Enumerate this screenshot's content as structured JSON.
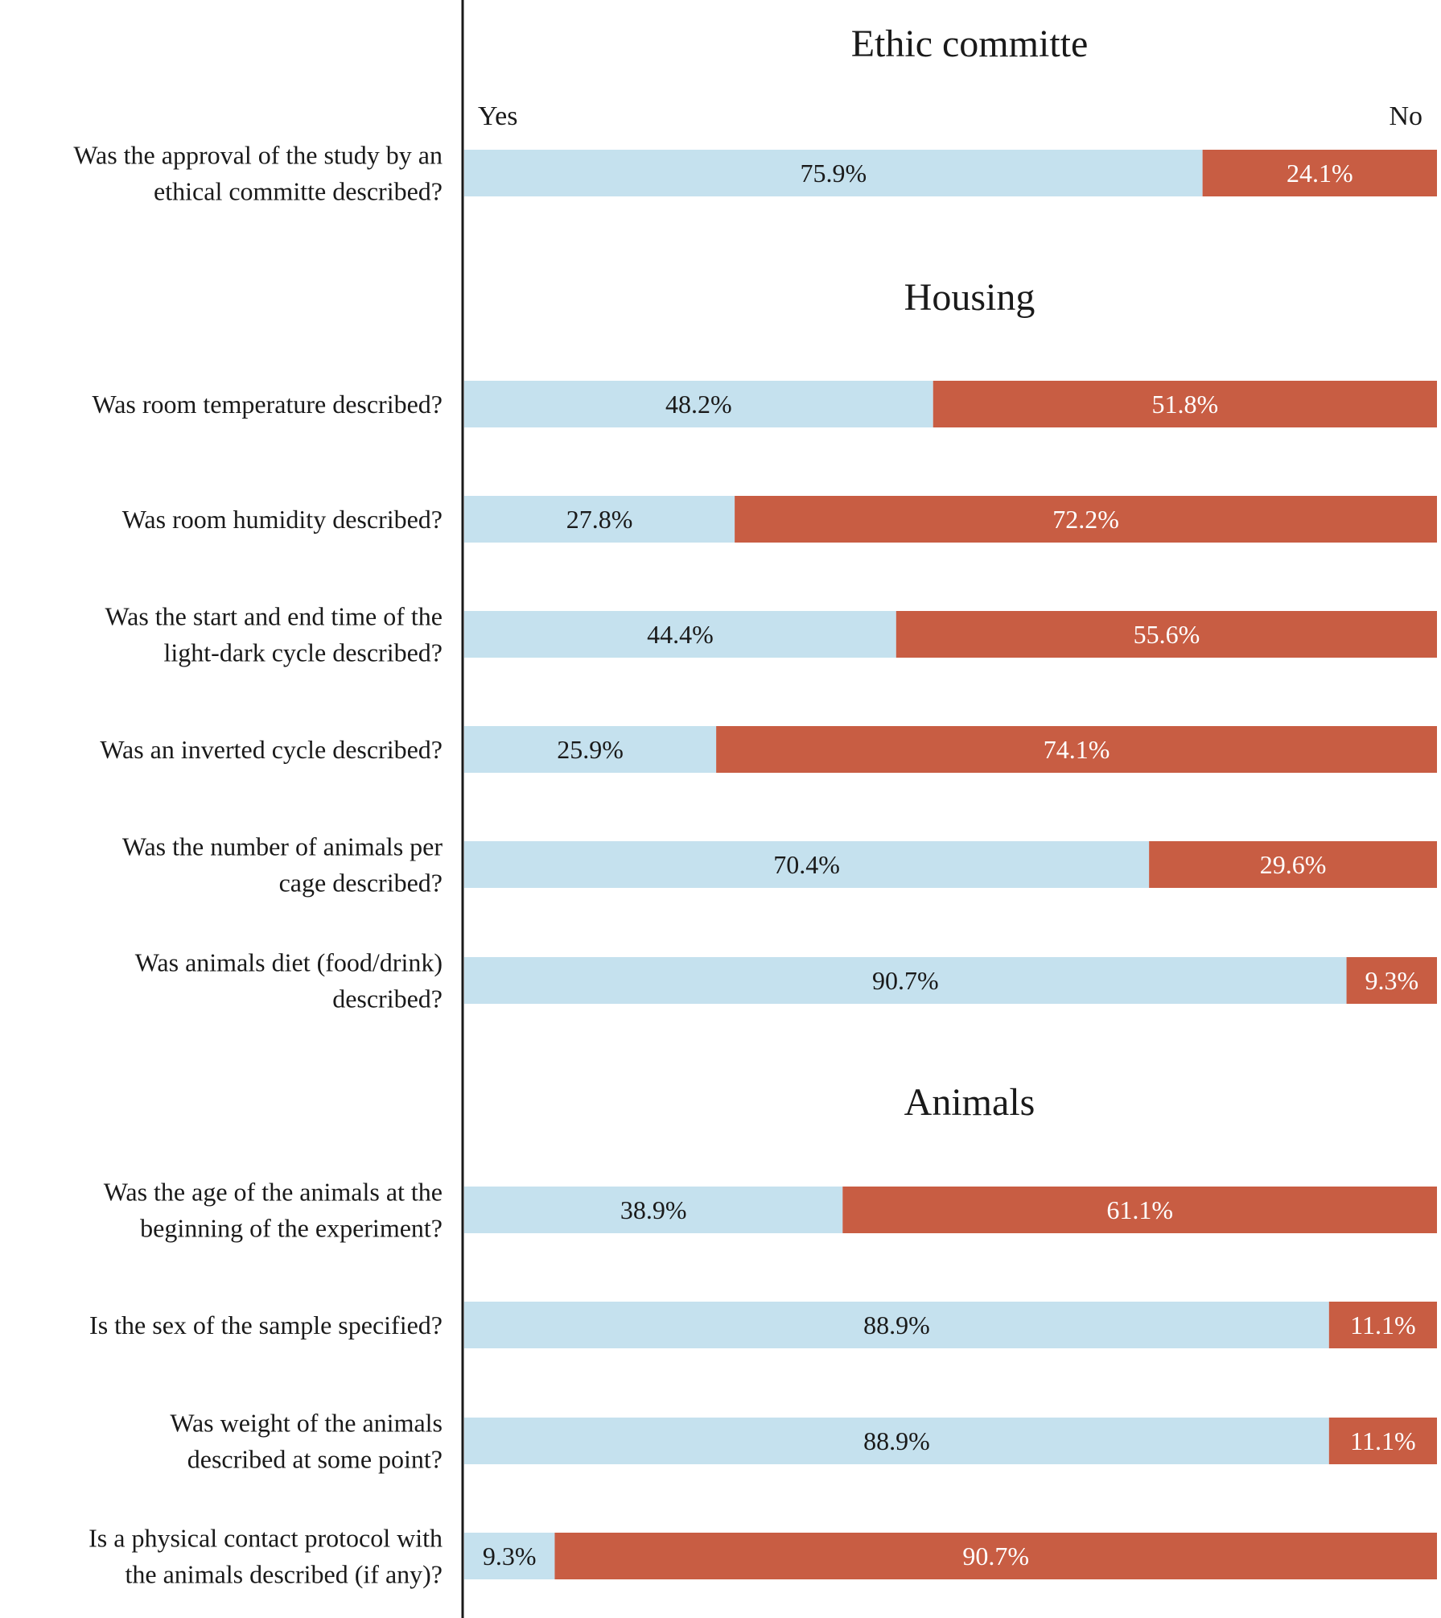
{
  "chart_data": {
    "type": "bar",
    "orientation": "horizontal",
    "stacked": true,
    "legend_labels": {
      "yes": "Yes",
      "no": "No"
    },
    "colors": {
      "yes": "#c5e1ee",
      "no": "#c85d43",
      "axis": "#1a1a1a"
    },
    "xlim": [
      0,
      100
    ],
    "sections": [
      {
        "title": "Ethic committe",
        "items": [
          {
            "lines": [
              "Was the approval of the study by an",
              "ethical committe described?"
            ],
            "yes": 75.9,
            "no": 24.1,
            "yes_label": "75.9%",
            "no_label": "24.1%"
          }
        ]
      },
      {
        "title": "Housing",
        "items": [
          {
            "lines": [
              "Was room temperature described?"
            ],
            "yes": 48.2,
            "no": 51.8,
            "yes_label": "48.2%",
            "no_label": "51.8%"
          },
          {
            "lines": [
              "Was room humidity described?"
            ],
            "yes": 27.8,
            "no": 72.2,
            "yes_label": "27.8%",
            "no_label": "72.2%"
          },
          {
            "lines": [
              "Was the start and end time of the",
              "light-dark cycle described?"
            ],
            "yes": 44.4,
            "no": 55.6,
            "yes_label": "44.4%",
            "no_label": "55.6%"
          },
          {
            "lines": [
              "Was an inverted cycle described?"
            ],
            "yes": 25.9,
            "no": 74.1,
            "yes_label": "25.9%",
            "no_label": "74.1%"
          },
          {
            "lines": [
              "Was the number of animals per",
              "cage described?"
            ],
            "yes": 70.4,
            "no": 29.6,
            "yes_label": "70.4%",
            "no_label": "29.6%"
          },
          {
            "lines": [
              "Was animals diet (food/drink)",
              "described?"
            ],
            "yes": 90.7,
            "no": 9.3,
            "yes_label": "90.7%",
            "no_label": "9.3%"
          }
        ]
      },
      {
        "title": "Animals",
        "items": [
          {
            "lines": [
              "Was the age of the animals at the",
              "beginning of the experiment?"
            ],
            "yes": 38.9,
            "no": 61.1,
            "yes_label": "38.9%",
            "no_label": "61.1%"
          },
          {
            "lines": [
              "Is the sex of the sample specified?"
            ],
            "yes": 88.9,
            "no": 11.1,
            "yes_label": "88.9%",
            "no_label": "11.1%"
          },
          {
            "lines": [
              "Was weight of the animals",
              "described at some point?"
            ],
            "yes": 88.9,
            "no": 11.1,
            "yes_label": "88.9%",
            "no_label": "11.1%"
          },
          {
            "lines": [
              "Is a physical contact protocol with",
              "the animals described (if any)?"
            ],
            "yes": 9.3,
            "no": 90.7,
            "yes_label": "9.3%",
            "no_label": "90.7%"
          }
        ]
      }
    ]
  }
}
